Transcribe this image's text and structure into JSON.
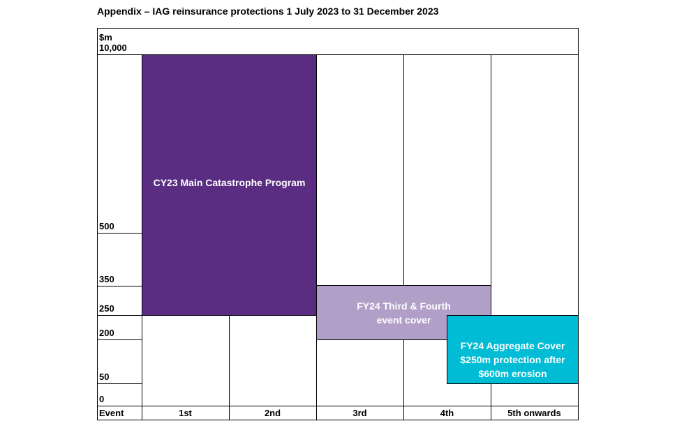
{
  "title": "Appendix – IAG reinsurance protections 1 July 2023 to 31 December 2023",
  "unit": "$m",
  "y_labels": [
    "10,000",
    "500",
    "350",
    "250",
    "200",
    "50",
    "0"
  ],
  "x_header": "Event",
  "events": [
    "1st",
    "2nd",
    "3rd",
    "4th",
    "5th onwards"
  ],
  "layers": [
    {
      "label": "CY23 Main Catastrophe Program",
      "from": "250",
      "to": "10,000",
      "events": "1st–2nd",
      "color": "#5a2d82"
    },
    {
      "label": "FY24 Third & Fourth event cover",
      "from": "200",
      "to": "350",
      "events": "3rd–4th",
      "color": "#b19fc8"
    },
    {
      "label": "FY24 Aggregate Cover $250m protection after $600m erosion",
      "from": "50",
      "to": "250",
      "events": "4th–5th onwards",
      "color": "#00bcd4"
    }
  ]
}
